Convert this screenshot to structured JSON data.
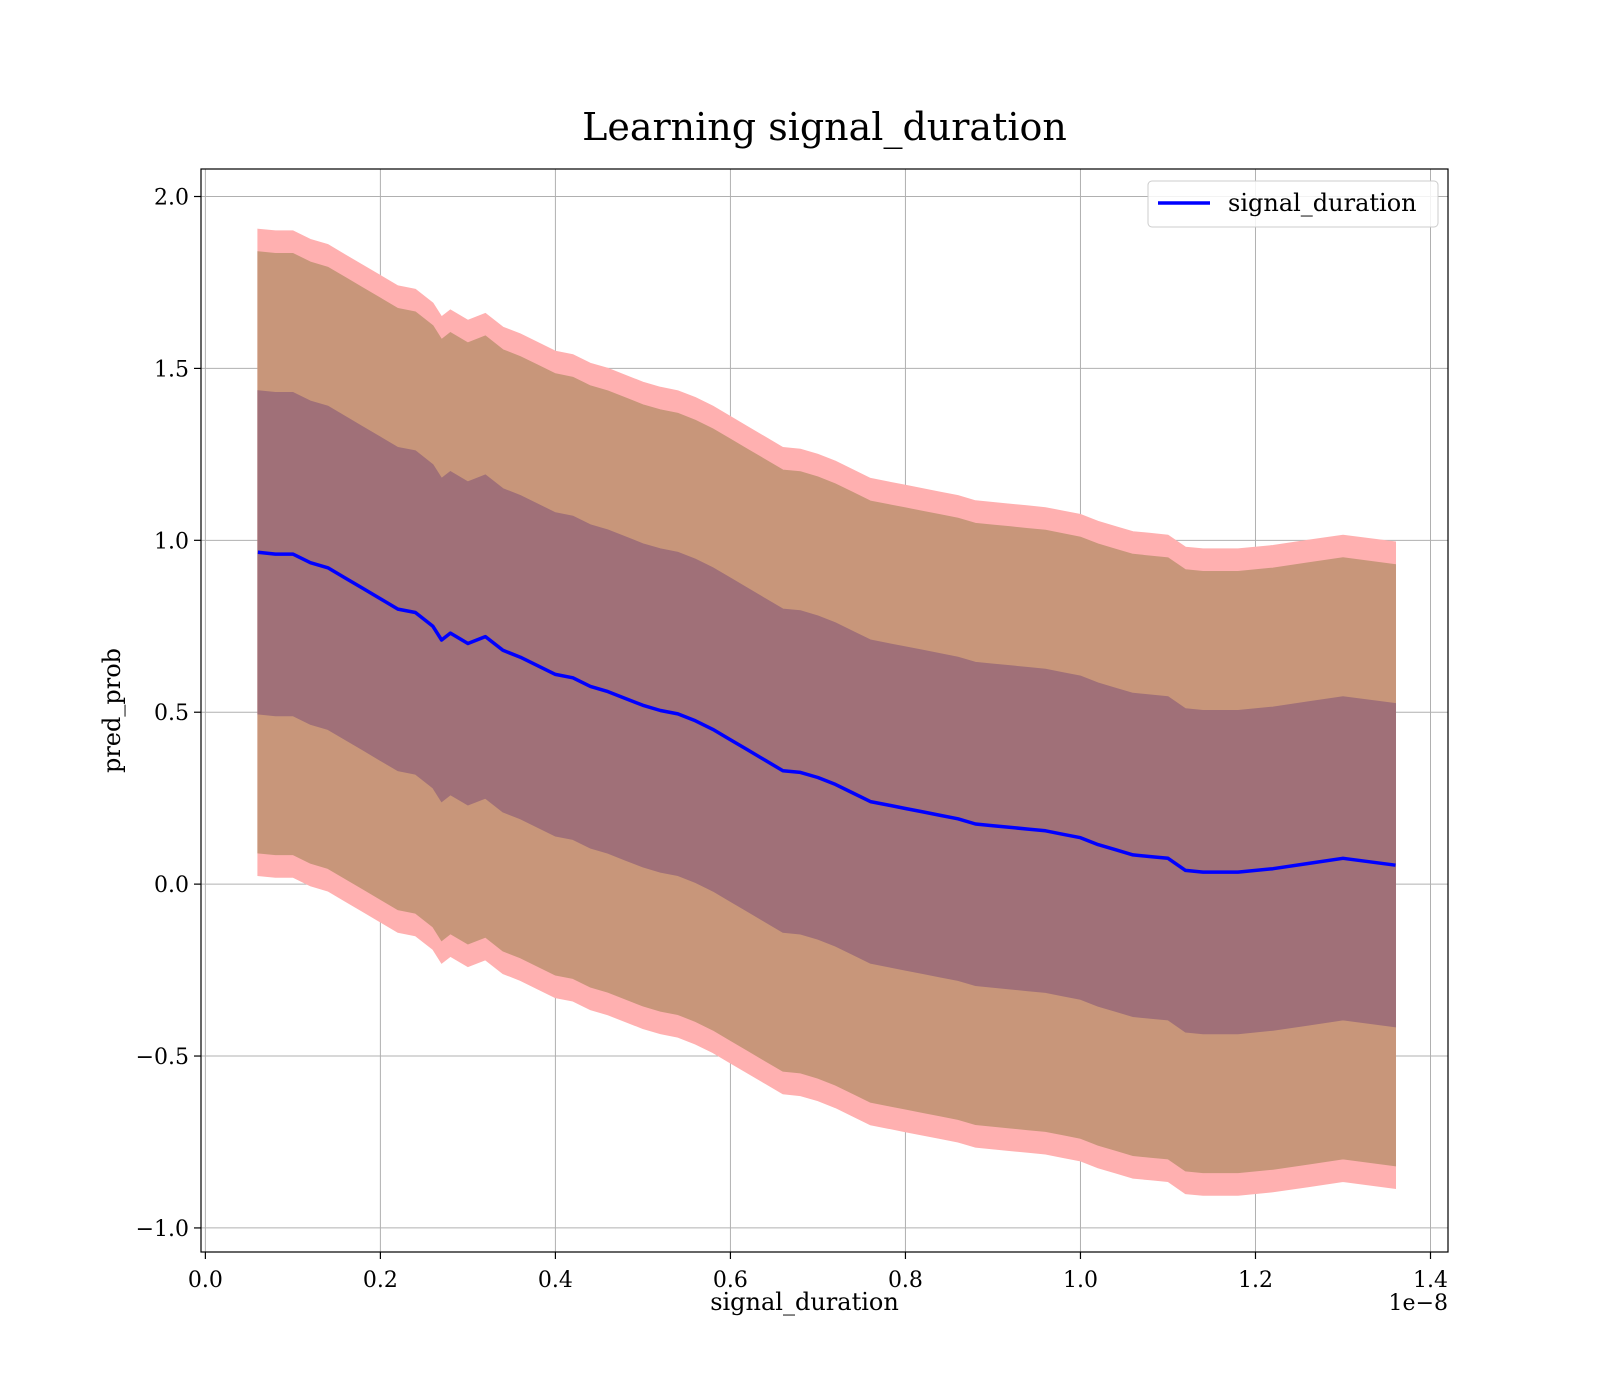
{
  "chart_data": {
    "type": "area",
    "title": "Learning signal_duration",
    "xlabel": "signal_duration",
    "ylabel": "pred_prob",
    "x_offset_label": "1e−8",
    "xlim": [
      -0.005,
      1.42
    ],
    "ylim": [
      -1.07,
      2.08
    ],
    "xticks": [
      0.0,
      0.2,
      0.4,
      0.6,
      0.8,
      1.0,
      1.2,
      1.4
    ],
    "xtick_labels": [
      "0.0",
      "0.2",
      "0.4",
      "0.6",
      "0.8",
      "1.0",
      "1.2",
      "1.4"
    ],
    "yticks": [
      -1.0,
      -0.5,
      0.0,
      0.5,
      1.0,
      1.5,
      2.0
    ],
    "ytick_labels": [
      "−1.0",
      "−0.5",
      "0.0",
      "0.5",
      "1.0",
      "1.5",
      "2.0"
    ],
    "grid": true,
    "legend": {
      "position": "top-right",
      "entries": [
        "signal_duration"
      ]
    },
    "colors": {
      "line": "#0000ff",
      "band_outer": "#ffb0b0",
      "band_middle": "#c8967a",
      "band_inner": "#a07078"
    },
    "x": [
      0.06,
      0.08,
      0.1,
      0.12,
      0.14,
      0.16,
      0.18,
      0.2,
      0.22,
      0.24,
      0.26,
      0.27,
      0.28,
      0.3,
      0.32,
      0.34,
      0.36,
      0.38,
      0.4,
      0.42,
      0.44,
      0.46,
      0.48,
      0.5,
      0.52,
      0.54,
      0.56,
      0.58,
      0.6,
      0.62,
      0.64,
      0.66,
      0.68,
      0.7,
      0.72,
      0.74,
      0.76,
      0.78,
      0.8,
      0.82,
      0.84,
      0.86,
      0.88,
      0.9,
      0.92,
      0.94,
      0.96,
      0.98,
      1.0,
      1.02,
      1.04,
      1.06,
      1.08,
      1.1,
      1.12,
      1.14,
      1.18,
      1.22,
      1.26,
      1.3,
      1.36
    ],
    "series": [
      {
        "name": "signal_duration",
        "values": [
          0.965,
          0.96,
          0.96,
          0.935,
          0.92,
          0.89,
          0.86,
          0.83,
          0.8,
          0.79,
          0.75,
          0.71,
          0.73,
          0.7,
          0.72,
          0.68,
          0.66,
          0.635,
          0.61,
          0.6,
          0.575,
          0.56,
          0.54,
          0.52,
          0.505,
          0.495,
          0.475,
          0.45,
          0.42,
          0.39,
          0.36,
          0.33,
          0.325,
          0.31,
          0.29,
          0.265,
          0.24,
          0.23,
          0.22,
          0.21,
          0.2,
          0.19,
          0.175,
          0.17,
          0.165,
          0.16,
          0.155,
          0.145,
          0.135,
          0.115,
          0.1,
          0.085,
          0.08,
          0.075,
          0.04,
          0.035,
          0.035,
          0.045,
          0.06,
          0.075,
          0.055
        ]
      }
    ]
  }
}
